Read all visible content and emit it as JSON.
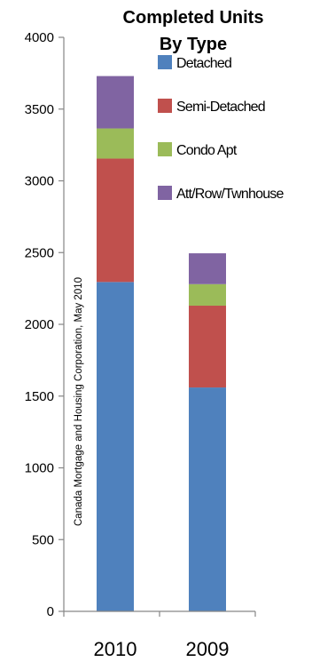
{
  "chart_data": {
    "type": "bar",
    "stacked": true,
    "title": [
      "Completed Units",
      "By Type"
    ],
    "categories": [
      "2010",
      "2009"
    ],
    "series": [
      {
        "name": "Detached",
        "color": "#4F81BD",
        "values": [
          2295,
          1560
        ]
      },
      {
        "name": "Semi-Detached",
        "color": "#C0504D",
        "values": [
          860,
          570
        ]
      },
      {
        "name": "Condo Apt",
        "color": "#9BBB59",
        "values": [
          210,
          150
        ]
      },
      {
        "name": "Att/Row/Twnhouse",
        "color": "#8064A2",
        "values": [
          365,
          215
        ]
      }
    ],
    "ylim": [
      0,
      4000
    ],
    "yticks": [
      0,
      500,
      1000,
      1500,
      2000,
      2500,
      3000,
      3500,
      4000
    ],
    "grid": false,
    "legend_position": "right",
    "annotation": "Canada Mortgage and Housing Corporation, May 2010"
  }
}
